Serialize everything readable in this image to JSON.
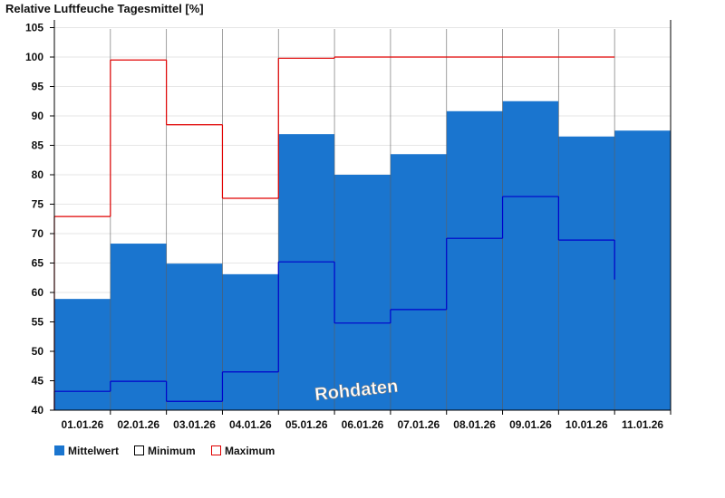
{
  "chart_data": {
    "type": "bar",
    "title": "Relative Luftfeuche Tagesmittel [%]",
    "xlabel": "",
    "ylabel": "",
    "ylim": [
      40,
      105
    ],
    "yticks": [
      40,
      45,
      50,
      55,
      60,
      65,
      70,
      75,
      80,
      85,
      90,
      95,
      100,
      105
    ],
    "grid": true,
    "categories": [
      "01.01.26",
      "02.01.26",
      "03.01.26",
      "04.01.26",
      "05.01.26",
      "06.01.26",
      "07.01.26",
      "08.01.26",
      "09.01.26",
      "10.01.26",
      "11.01.26"
    ],
    "series": [
      {
        "name": "Mittelwert",
        "style": "filled-bar",
        "color": "#1a75cf",
        "values": [
          58.9,
          68.3,
          64.9,
          63.1,
          86.9,
          80.0,
          83.5,
          90.8,
          92.5,
          86.5,
          87.5
        ]
      },
      {
        "name": "Minimum",
        "style": "step-line",
        "color": "#0000cc",
        "values": [
          43.2,
          44.9,
          41.5,
          46.5,
          65.2,
          54.8,
          57.1,
          69.2,
          76.3,
          68.9,
          62.2
        ]
      },
      {
        "name": "Maximum",
        "style": "step-line",
        "color": "#e00000",
        "values": [
          72.9,
          99.5,
          88.5,
          76.0,
          99.8,
          100.0,
          100.0,
          100.0,
          100.0,
          100.0,
          null
        ]
      }
    ],
    "legend_position": "bottom-left",
    "annotation": "Rohdaten"
  }
}
